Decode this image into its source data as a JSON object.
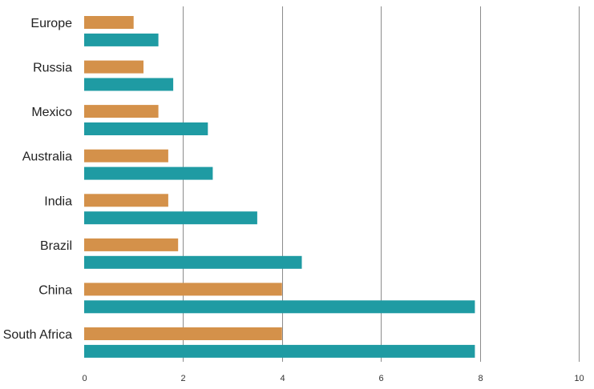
{
  "chart_data": {
    "type": "bar",
    "orientation": "horizontal",
    "categories": [
      "Europe",
      "Russia",
      "Mexico",
      "Australia",
      "India",
      "Brazil",
      "China",
      "South Africa"
    ],
    "series": [
      {
        "color": "#D4914A",
        "values": [
          1.0,
          1.2,
          1.5,
          1.7,
          1.7,
          1.9,
          4.0,
          4.0
        ]
      },
      {
        "color": "#1F9BA3",
        "values": [
          1.5,
          1.8,
          2.5,
          2.6,
          3.5,
          4.4,
          7.9,
          7.9
        ]
      }
    ],
    "xlim": [
      0,
      10
    ],
    "x_ticks": [
      "0",
      "2",
      "4",
      "6",
      "8",
      "10"
    ],
    "x_tick_values": [
      0,
      2,
      4,
      6,
      8,
      10
    ],
    "grid": true,
    "legend": "none",
    "title": "",
    "xlabel": "",
    "ylabel": ""
  }
}
